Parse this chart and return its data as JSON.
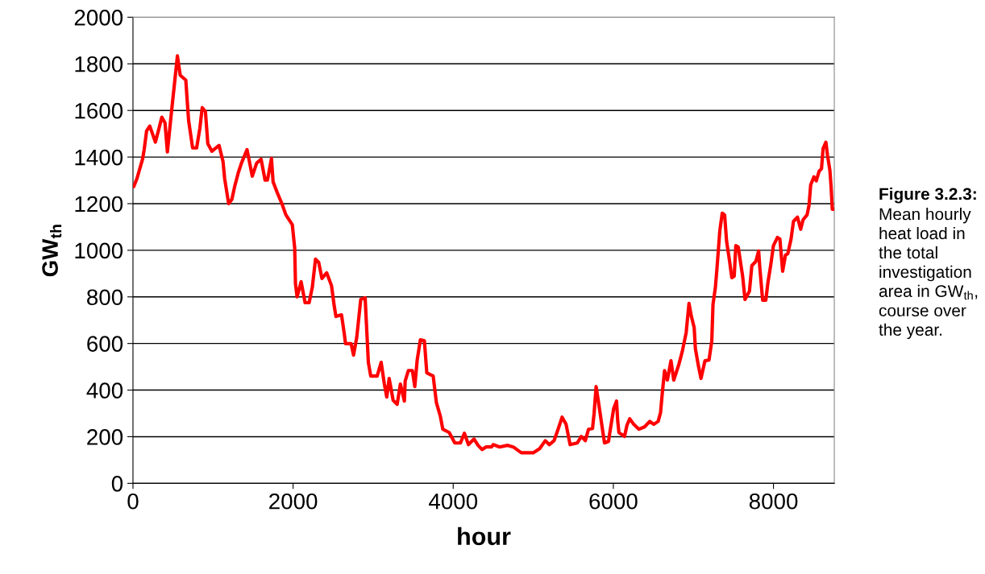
{
  "chart_data": {
    "type": "line",
    "xlabel": "hour",
    "ylabel": "GW$_{th}$",
    "annotations": [
      "Figure 3.2.3:",
      "Mean hourly heat load in the total investigation area in GW$_{th}$, course over the year."
    ],
    "xlim": [
      0,
      8760
    ],
    "xticks": [
      0,
      2000,
      4000,
      6000,
      8000
    ],
    "ylim": [
      0,
      2000
    ],
    "yticks": [
      0,
      200,
      400,
      600,
      800,
      1000,
      1200,
      1400,
      1600,
      1800,
      2000
    ],
    "grid": "y",
    "marker": "none",
    "line_style": "solid",
    "series": [
      {
        "color": "#ff0000",
        "x": [
          10,
          50,
          90,
          120,
          140,
          170,
          210,
          280,
          320,
          360,
          400,
          430,
          470,
          510,
          555,
          590,
          660,
          675,
          695,
          745,
          795,
          835,
          865,
          905,
          935,
          985,
          1075,
          1125,
          1145,
          1195,
          1235,
          1270,
          1315,
          1355,
          1425,
          1490,
          1545,
          1600,
          1650,
          1680,
          1730,
          1750,
          1800,
          1860,
          1910,
          1990,
          2020,
          2030,
          2050,
          2100,
          2150,
          2200,
          2240,
          2280,
          2320,
          2360,
          2420,
          2480,
          2515,
          2535,
          2605,
          2640,
          2655,
          2725,
          2755,
          2795,
          2845,
          2900,
          2940,
          2970,
          3050,
          3100,
          3140,
          3170,
          3200,
          3250,
          3300,
          3340,
          3390,
          3400,
          3440,
          3490,
          3520,
          3550,
          3590,
          3640,
          3670,
          3750,
          3790,
          3840,
          3870,
          3950,
          4020,
          4090,
          4140,
          4190,
          4260,
          4310,
          4360,
          4410,
          4480,
          4500,
          4580,
          4680,
          4750,
          4850,
          5000,
          5080,
          5150,
          5200,
          5260,
          5310,
          5360,
          5410,
          5460,
          5550,
          5600,
          5650,
          5690,
          5740,
          5760,
          5785,
          5820,
          5855,
          5890,
          5940,
          5955,
          6005,
          6040,
          6055,
          6070,
          6140,
          6170,
          6205,
          6255,
          6320,
          6390,
          6455,
          6505,
          6560,
          6590,
          6610,
          6640,
          6675,
          6720,
          6755,
          6820,
          6860,
          6910,
          6945,
          6975,
          7010,
          7025,
          7060,
          7095,
          7145,
          7195,
          7230,
          7245,
          7275,
          7295,
          7330,
          7360,
          7390,
          7415,
          7450,
          7480,
          7510,
          7530,
          7560,
          7615,
          7645,
          7700,
          7730,
          7780,
          7815,
          7830,
          7865,
          7905,
          7930,
          7965,
          8000,
          8050,
          8080,
          8115,
          8150,
          8180,
          8220,
          8250,
          8300,
          8340,
          8370,
          8420,
          8445,
          8465,
          8505,
          8535,
          8570,
          8600,
          8620,
          8655,
          8675,
          8705,
          8720,
          8735,
          8760
        ],
        "values": [
          1273,
          1308,
          1356,
          1391,
          1432,
          1512,
          1533,
          1464,
          1516,
          1571,
          1547,
          1422,
          1557,
          1688,
          1834,
          1751,
          1730,
          1654,
          1557,
          1439,
          1439,
          1522,
          1612,
          1595,
          1457,
          1425,
          1450,
          1380,
          1308,
          1200,
          1218,
          1273,
          1332,
          1374,
          1432,
          1318,
          1374,
          1391,
          1301,
          1301,
          1394,
          1294,
          1249,
          1200,
          1152,
          1110,
          1010,
          855,
          800,
          865,
          775,
          775,
          841,
          962,
          948,
          879,
          903,
          848,
          758,
          716,
          723,
          640,
          599,
          599,
          550,
          626,
          789,
          796,
          519,
          460,
          460,
          519,
          426,
          370,
          450,
          356,
          339,
          426,
          353,
          439,
          484,
          484,
          415,
          529,
          616,
          612,
          474,
          460,
          346,
          287,
          232,
          218,
          173,
          173,
          215,
          166,
          190,
          163,
          145,
          156,
          156,
          166,
          156,
          163,
          156,
          131,
          131,
          149,
          183,
          166,
          183,
          232,
          284,
          253,
          166,
          173,
          201,
          183,
          232,
          235,
          301,
          415,
          336,
          253,
          173,
          180,
          215,
          322,
          353,
          266,
          218,
          201,
          249,
          277,
          253,
          232,
          242,
          266,
          253,
          266,
          304,
          381,
          484,
          443,
          526,
          443,
          512,
          564,
          647,
          772,
          716,
          668,
          578,
          509,
          450,
          526,
          529,
          612,
          768,
          841,
          924,
          1083,
          1159,
          1152,
          1038,
          958,
          882,
          889,
          1020,
          1014,
          889,
          789,
          824,
          934,
          952,
          997,
          924,
          786,
          786,
          859,
          934,
          1020,
          1055,
          1049,
          910,
          979,
          986,
          1049,
          1124,
          1142,
          1090,
          1131,
          1152,
          1194,
          1280,
          1315,
          1298,
          1339,
          1350,
          1436,
          1464,
          1408,
          1343,
          1273,
          1176,
          1176
        ]
      }
    ]
  }
}
